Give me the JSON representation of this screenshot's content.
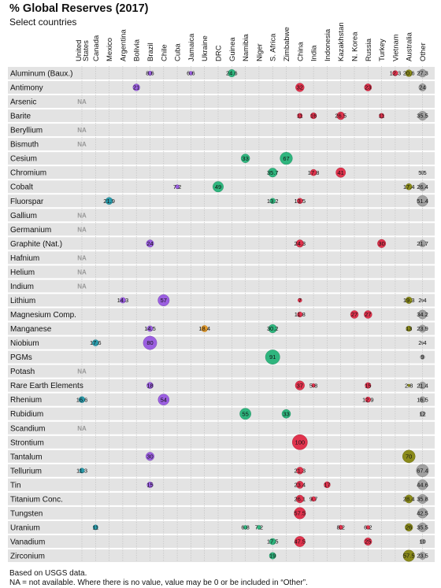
{
  "header": {
    "title": "% Global Reserves (2017)",
    "subtitle": "Select countries"
  },
  "footnotes": [
    "Based on USGS data.",
    "NA = not available. Where there is no value, value may be 0 or be included in “Other”."
  ],
  "colors": {
    "row_band": "#e3e3e3",
    "grid": "#bdbdbd",
    "Americas": "#2a9bab",
    "Latin America": "#9b5fe0",
    "Europe": "#e39a2a",
    "Africa": "#2fb57e",
    "Asia": "#e0334d",
    "Oceania": "#8a8a1a",
    "Other": "#a0a0a0"
  },
  "chart_data": {
    "type": "bubble-matrix",
    "title": "% Global Reserves (2017)",
    "subtitle": "Select countries",
    "na_label": "NA",
    "countries": [
      {
        "name": "United States",
        "lines": [
          "United",
          "States"
        ],
        "group": "Americas"
      },
      {
        "name": "Canada",
        "lines": [
          "Canada"
        ],
        "group": "Americas"
      },
      {
        "name": "Mexico",
        "lines": [
          "Mexico"
        ],
        "group": "Americas"
      },
      {
        "name": "Argentina",
        "lines": [
          "Argentina"
        ],
        "group": "Latin America"
      },
      {
        "name": "Bolivia",
        "lines": [
          "Bolivia"
        ],
        "group": "Latin America"
      },
      {
        "name": "Brazil",
        "lines": [
          "Brazil"
        ],
        "group": "Latin America"
      },
      {
        "name": "Chile",
        "lines": [
          "Chile"
        ],
        "group": "Latin America"
      },
      {
        "name": "Cuba",
        "lines": [
          "Cuba"
        ],
        "group": "Latin America"
      },
      {
        "name": "Jamaica",
        "lines": [
          "Jamaica"
        ],
        "group": "Latin America"
      },
      {
        "name": "Ukraine",
        "lines": [
          "Ukraine"
        ],
        "group": "Europe"
      },
      {
        "name": "DRC",
        "lines": [
          "DRC"
        ],
        "group": "Africa"
      },
      {
        "name": "Guinea",
        "lines": [
          "Guinea"
        ],
        "group": "Africa"
      },
      {
        "name": "Namibia",
        "lines": [
          "Namibia"
        ],
        "group": "Africa"
      },
      {
        "name": "Niger",
        "lines": [
          "Niger"
        ],
        "group": "Africa"
      },
      {
        "name": "S. Africa",
        "lines": [
          "S. Africa"
        ],
        "group": "Africa"
      },
      {
        "name": "Zimbabwe",
        "lines": [
          "Zimbabwe"
        ],
        "group": "Africa"
      },
      {
        "name": "China",
        "lines": [
          "China"
        ],
        "group": "Asia"
      },
      {
        "name": "India",
        "lines": [
          "India"
        ],
        "group": "Asia"
      },
      {
        "name": "Indonesia",
        "lines": [
          "Indonesia"
        ],
        "group": "Asia"
      },
      {
        "name": "Kazakhstan",
        "lines": [
          "Kazakhstan"
        ],
        "group": "Asia"
      },
      {
        "name": "N. Korea",
        "lines": [
          "N. Korea"
        ],
        "group": "Asia"
      },
      {
        "name": "Russia",
        "lines": [
          "Russia"
        ],
        "group": "Asia"
      },
      {
        "name": "Turkey",
        "lines": [
          "Turkey"
        ],
        "group": "Asia"
      },
      {
        "name": "Vietnam",
        "lines": [
          "Vietnam"
        ],
        "group": "Asia"
      },
      {
        "name": "Australia",
        "lines": [
          "Australia"
        ],
        "group": "Oceania"
      },
      {
        "name": "Other",
        "lines": [
          "Other"
        ],
        "group": "Other"
      }
    ],
    "rows": [
      {
        "mineral": "Aluminum (Baux.)",
        "values": {
          "Brazil": 8.6,
          "Jamaica": 6.6,
          "Guinea": 24.6,
          "Vietnam": 12.3,
          "Australia": 20.6,
          "Other": 27.3
        }
      },
      {
        "mineral": "Antimony",
        "values": {
          "Bolivia": 21,
          "China": 32,
          "Russia": 23,
          "Other": 24
        }
      },
      {
        "mineral": "Arsenic",
        "na": true,
        "values": {}
      },
      {
        "mineral": "Barite",
        "values": {
          "China": 11,
          "India": 16,
          "Kazakhstan": 26.5,
          "Turkey": 11,
          "Other": 35.5
        }
      },
      {
        "mineral": "Beryllium",
        "na": true,
        "values": {}
      },
      {
        "mineral": "Bismuth",
        "na": true,
        "values": {}
      },
      {
        "mineral": "Cesium",
        "values": {
          "Namibia": 33,
          "Zimbabwe": 67
        }
      },
      {
        "mineral": "Chromium",
        "values": {
          "S. Africa": 35.7,
          "India": 17.8,
          "Kazakhstan": 41,
          "Other": 5.5
        }
      },
      {
        "mineral": "Cobalt",
        "values": {
          "Cuba": 7.2,
          "DRC": 49,
          "Australia": 17.4,
          "Other": 26.4
        }
      },
      {
        "mineral": "Fluorspar",
        "values": {
          "Mexico": 21.9,
          "S. Africa": 13.2,
          "China": 13.5,
          "Other": 51.4
        }
      },
      {
        "mineral": "Gallium",
        "na": true,
        "values": {}
      },
      {
        "mineral": "Germanium",
        "na": true,
        "values": {}
      },
      {
        "mineral": "Graphite (Nat.)",
        "values": {
          "Brazil": 24,
          "China": 24.3,
          "Turkey": 30,
          "Other": 21.7
        }
      },
      {
        "mineral": "Hafnium",
        "na": true,
        "values": {}
      },
      {
        "mineral": "Helium",
        "na": true,
        "values": {}
      },
      {
        "mineral": "Indium",
        "na": true,
        "values": {}
      },
      {
        "mineral": "Lithium",
        "values": {
          "Argentina": 14.3,
          "Chile": 57,
          "China": 7,
          "Australia": 19.3,
          "Other": 2.4
        }
      },
      {
        "mineral": "Magnesium Comp.",
        "values": {
          "China": 11.8,
          "N. Korea": 27,
          "Russia": 27,
          "Other": 34.2
        }
      },
      {
        "mineral": "Manganese",
        "values": {
          "Brazil": 14.5,
          "Ukraine": 18.4,
          "S. Africa": 30.2,
          "Australia": 13,
          "Other": 23.9
        }
      },
      {
        "mineral": "Niobium",
        "values": {
          "Canada": 17.6,
          "Brazil": 80,
          "Other": 2.4
        }
      },
      {
        "mineral": "PGMs",
        "values": {
          "S. Africa": 91,
          "Other": 9
        }
      },
      {
        "mineral": "Potash",
        "na": true,
        "values": {}
      },
      {
        "mineral": "Rare Earth Elements",
        "values": {
          "Brazil": 18,
          "China": 37,
          "India": 5.8,
          "Russia": 15,
          "Australia": 2.8,
          "Other": 21.4
        }
      },
      {
        "mineral": "Rhenium",
        "values": {
          "United States": 16.6,
          "Chile": 54,
          "Russia": 12.9,
          "Other": 16.5
        }
      },
      {
        "mineral": "Rubidium",
        "values": {
          "Namibia": 55,
          "Zimbabwe": 33,
          "Other": 12
        }
      },
      {
        "mineral": "Scandium",
        "na": true,
        "values": {}
      },
      {
        "mineral": "Strontium",
        "values": {
          "China": 100
        }
      },
      {
        "mineral": "Tantalum",
        "values": {
          "Brazil": 30,
          "Australia": 70
        }
      },
      {
        "mineral": "Tellurium",
        "values": {
          "United States": 11.3,
          "China": 21.3,
          "Other": 67.4
        }
      },
      {
        "mineral": "Tin",
        "values": {
          "Brazil": 15,
          "China": 23.4,
          "Indonesia": 17,
          "Other": 44.6
        }
      },
      {
        "mineral": "Titanium Conc.",
        "values": {
          "China": 26.1,
          "India": 9.7,
          "Australia": 28.4,
          "Other": 35.8
        }
      },
      {
        "mineral": "Tungsten",
        "values": {
          "China": 57.5,
          "Other": 42.5
        }
      },
      {
        "mineral": "Uranium",
        "values": {
          "Canada": 11,
          "Namibia": 6.8,
          "Niger": 7.2,
          "Kazakhstan": 8.2,
          "Russia": 6.2,
          "Australia": 26,
          "Other": 35.5
        }
      },
      {
        "mineral": "Vanadium",
        "values": {
          "S. Africa": 17.5,
          "China": 47.5,
          "Russia": 25,
          "Other": 10
        }
      },
      {
        "mineral": "Zirconium",
        "values": {
          "S. Africa": 19,
          "Australia": 57.5,
          "Other": 23.5
        }
      }
    ]
  }
}
